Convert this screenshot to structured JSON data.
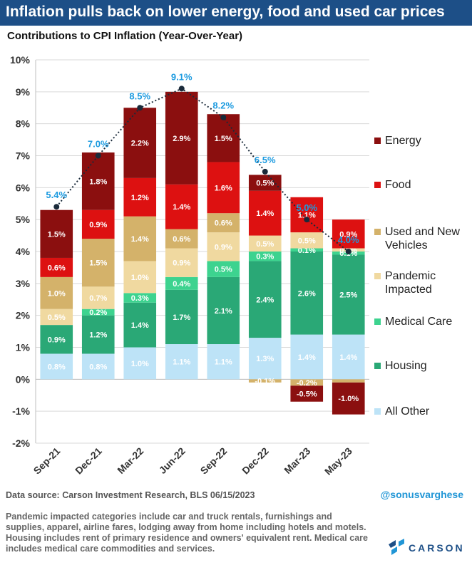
{
  "header": {
    "title": "Inflation pulls back on lower energy, food and used car prices",
    "subtitle": "Contributions to CPI Inflation (Year-Over-Year)"
  },
  "chart_data": {
    "type": "bar",
    "stacked": true,
    "categories": [
      "Sep-21",
      "Dec-21",
      "Mar-22",
      "Jun-22",
      "Sep-22",
      "Dec-22",
      "Mar-23",
      "May-23"
    ],
    "ylim": [
      -2,
      10
    ],
    "yticks": [
      "-2%",
      "-1%",
      "0%",
      "1%",
      "2%",
      "3%",
      "4%",
      "5%",
      "6%",
      "7%",
      "8%",
      "9%",
      "10%"
    ],
    "series": [
      {
        "name": "All Other",
        "color": "#bde3f7",
        "values": [
          0.8,
          0.8,
          1.0,
          1.1,
          1.1,
          1.3,
          1.4,
          1.4
        ],
        "labels": [
          "0.8%",
          "0.8%",
          "1.0%",
          "1.1%",
          "1.1%",
          "1.3%",
          "1.4%",
          "1.4%"
        ]
      },
      {
        "name": "Housing",
        "color": "#2aa876",
        "values": [
          0.9,
          1.2,
          1.4,
          1.7,
          2.1,
          2.4,
          2.6,
          2.5
        ],
        "labels": [
          "0.9%",
          "1.2%",
          "1.4%",
          "1.7%",
          "2.1%",
          "2.4%",
          "2.6%",
          "2.5%"
        ]
      },
      {
        "name": "Medical Care",
        "color": "#3dd38f",
        "values": [
          0.0,
          0.2,
          0.3,
          0.4,
          0.5,
          0.3,
          0.1,
          0.1
        ],
        "labels": [
          "0.0%",
          "0.2%",
          "0.3%",
          "0.4%",
          "0.5%",
          "0.3%",
          "0.1%",
          "0.1%"
        ]
      },
      {
        "name": "Pandemic Impacted",
        "color": "#f0d9a0",
        "values": [
          0.5,
          0.7,
          1.0,
          0.9,
          0.9,
          0.5,
          0.5,
          0.1
        ],
        "labels": [
          "0.5%",
          "0.7%",
          "1.0%",
          "0.9%",
          "0.9%",
          "0.5%",
          "0.5%",
          "0.1%"
        ]
      },
      {
        "name": "Used and New Vehicles",
        "color": "#d4b26a",
        "values": [
          1.0,
          1.5,
          1.4,
          0.6,
          0.6,
          -0.1,
          -0.2,
          -0.1
        ],
        "labels": [
          "1.0%",
          "1.5%",
          "1.4%",
          "0.6%",
          "0.6%",
          "-0.1%",
          "-0.2%",
          ""
        ]
      },
      {
        "name": "Food",
        "color": "#dd1111",
        "values": [
          0.6,
          0.9,
          1.2,
          1.4,
          1.6,
          1.4,
          1.1,
          0.9
        ],
        "labels": [
          "0.6%",
          "0.9%",
          "1.2%",
          "1.4%",
          "1.6%",
          "1.4%",
          "1.1%",
          "0.9%"
        ]
      },
      {
        "name": "Energy",
        "color": "#8b0f0f",
        "values": [
          1.5,
          1.8,
          2.2,
          2.9,
          1.5,
          0.5,
          -0.5,
          -1.0
        ],
        "labels": [
          "1.5%",
          "1.8%",
          "2.2%",
          "2.9%",
          "1.5%",
          "0.5%",
          "-0.5%",
          "-1.0%"
        ]
      }
    ],
    "total": {
      "values": [
        5.4,
        7.0,
        8.5,
        9.1,
        8.2,
        6.5,
        5.0,
        4.0
      ],
      "labels": [
        "5.4%",
        "7.0%",
        "8.5%",
        "9.1%",
        "8.2%",
        "6.5%",
        "5.0%",
        "4.0%"
      ],
      "color": "#1d9be0"
    },
    "legend": [
      {
        "label": "Energy",
        "color": "#8b0f0f"
      },
      {
        "label": "Food",
        "color": "#dd1111"
      },
      {
        "label": "Used and New Vehicles",
        "color": "#d4b26a"
      },
      {
        "label": "Pandemic Impacted",
        "color": "#f0d9a0"
      },
      {
        "label": "Medical Care",
        "color": "#3dd38f"
      },
      {
        "label": "Housing",
        "color": "#2aa876"
      },
      {
        "label": "All Other",
        "color": "#bde3f7"
      }
    ],
    "legend_position": "right"
  },
  "footer": {
    "source": "Data source: Carson Investment Research, BLS   06/15/2023",
    "handle": "@sonusvarghese",
    "note": "Pandemic impacted categories include car and truck rentals, furnishings and supplies, apparel, airline fares, lodging away from home including hotels and motels. Housing includes rent of primary residence and owners' equivalent rent. Medical care includes medical care commodities and services.",
    "logo_text": "CARSON"
  }
}
